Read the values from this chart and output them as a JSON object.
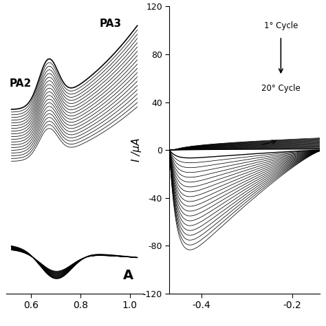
{
  "panel_A": {
    "xlim": [
      0.5,
      1.055
    ],
    "xticks": [
      0.6,
      0.8,
      1.0
    ],
    "label_PA2": "PA2",
    "label_PA3": "PA3",
    "label_A": "A",
    "n_cycles": 20
  },
  "panel_B": {
    "xlim": [
      -0.47,
      -0.14
    ],
    "ylim": [
      -120,
      120
    ],
    "xticks": [
      -0.4,
      -0.2
    ],
    "yticks": [
      -120,
      -80,
      -40,
      0,
      40,
      80,
      120
    ],
    "ylabel": "I /μA",
    "annotation_1st": "1° Cycle",
    "annotation_20th": "20° Cycle",
    "n_cycles": 20
  }
}
